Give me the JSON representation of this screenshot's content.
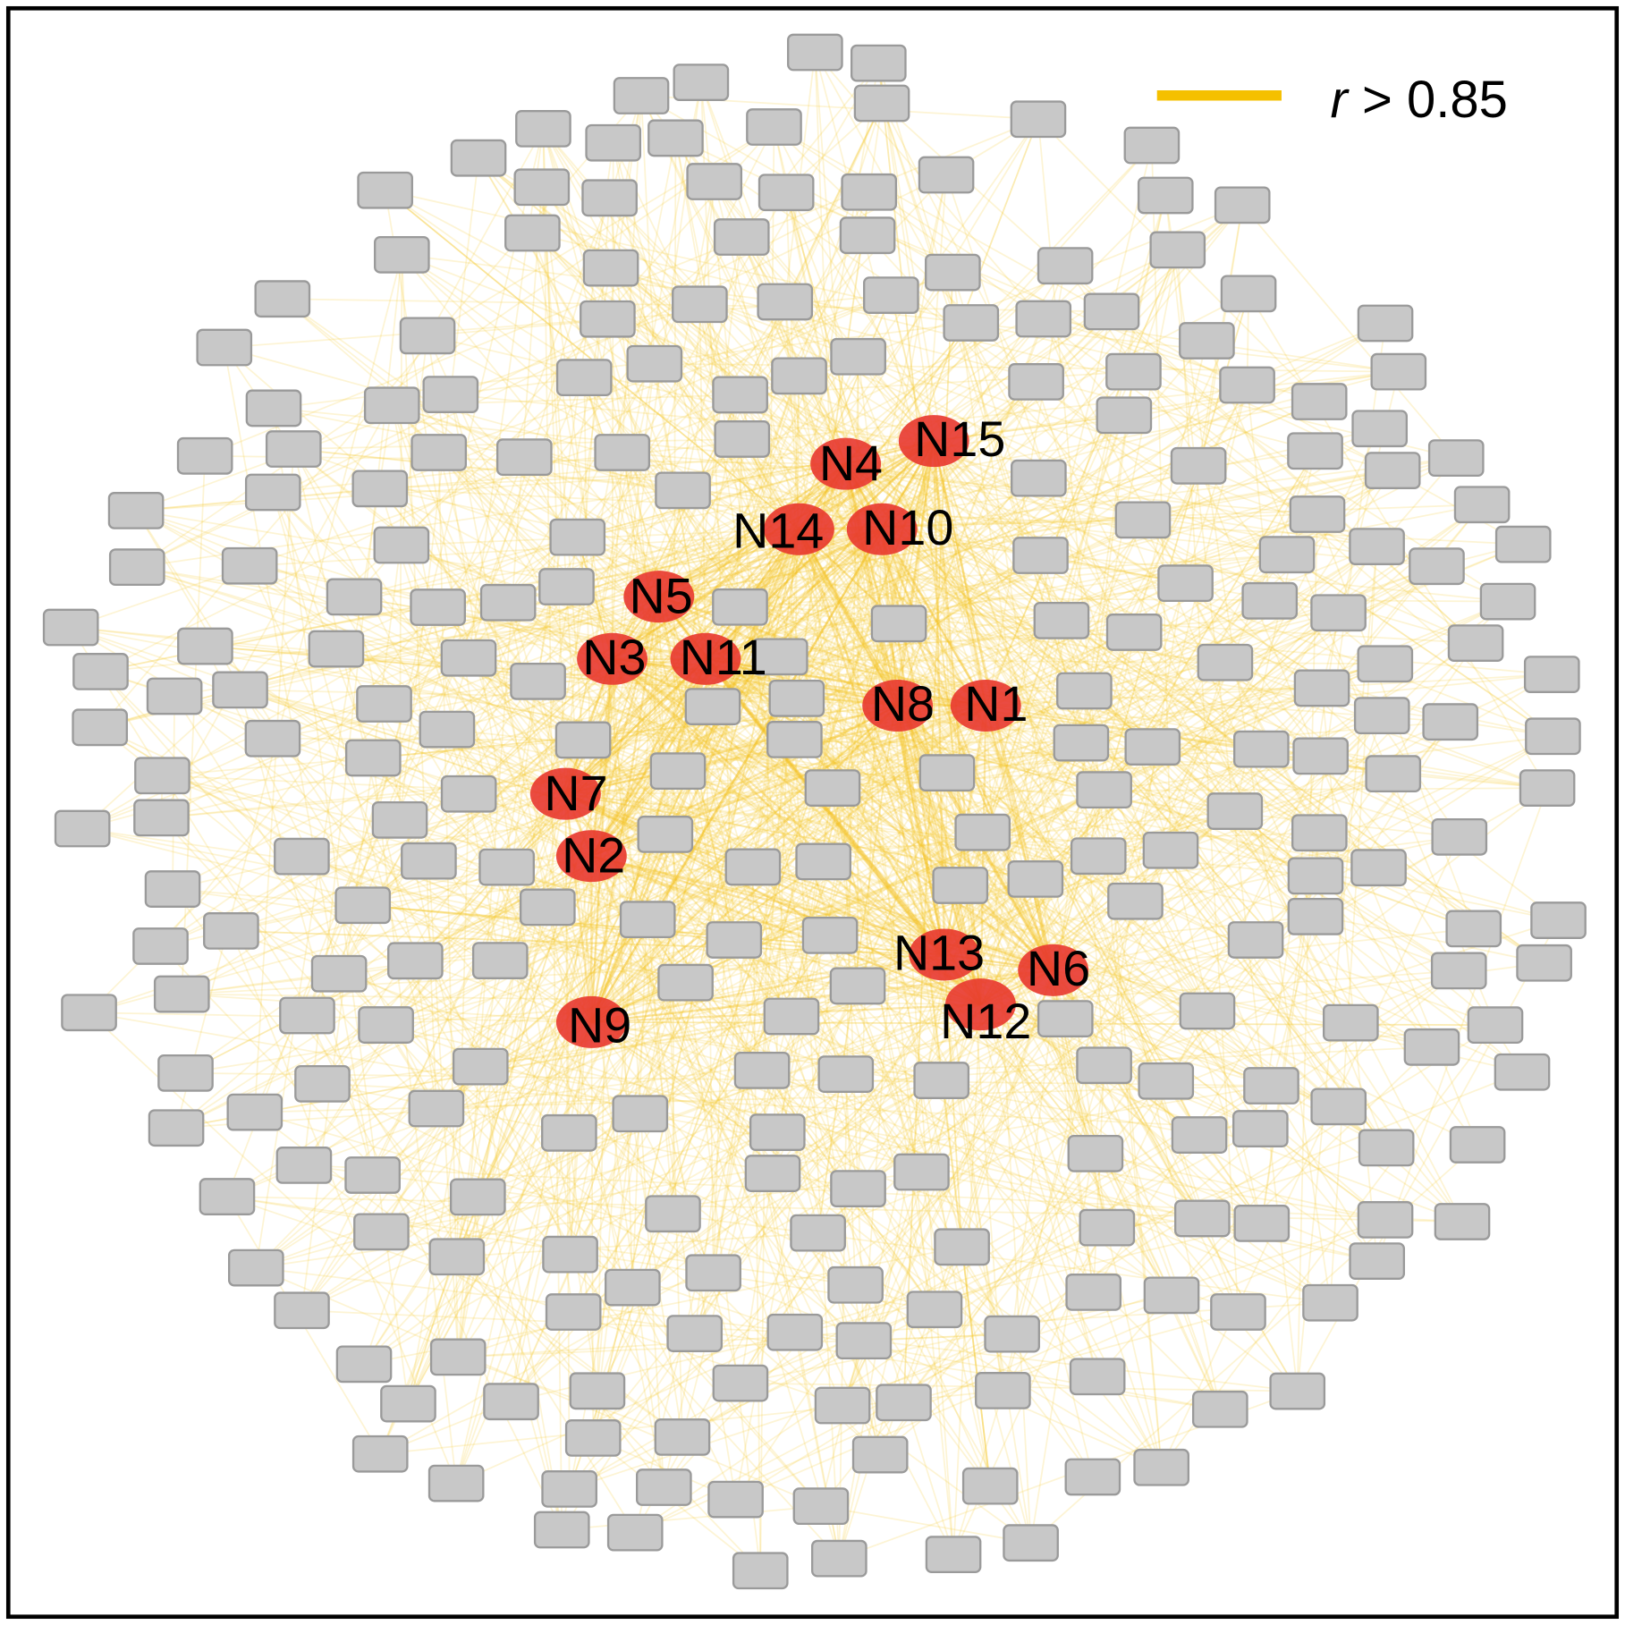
{
  "legend": {
    "variable": "r",
    "condition": "> 0.85"
  },
  "nodes": [
    {
      "label": "N1"
    },
    {
      "label": "N2"
    },
    {
      "label": "N3"
    },
    {
      "label": "N4"
    },
    {
      "label": "N5"
    },
    {
      "label": "N6"
    },
    {
      "label": "N7"
    },
    {
      "label": "N8"
    },
    {
      "label": "N9"
    },
    {
      "label": "N10"
    },
    {
      "label": "N11"
    },
    {
      "label": "N12"
    },
    {
      "label": "N13"
    },
    {
      "label": "N14"
    },
    {
      "label": "N15"
    }
  ]
}
